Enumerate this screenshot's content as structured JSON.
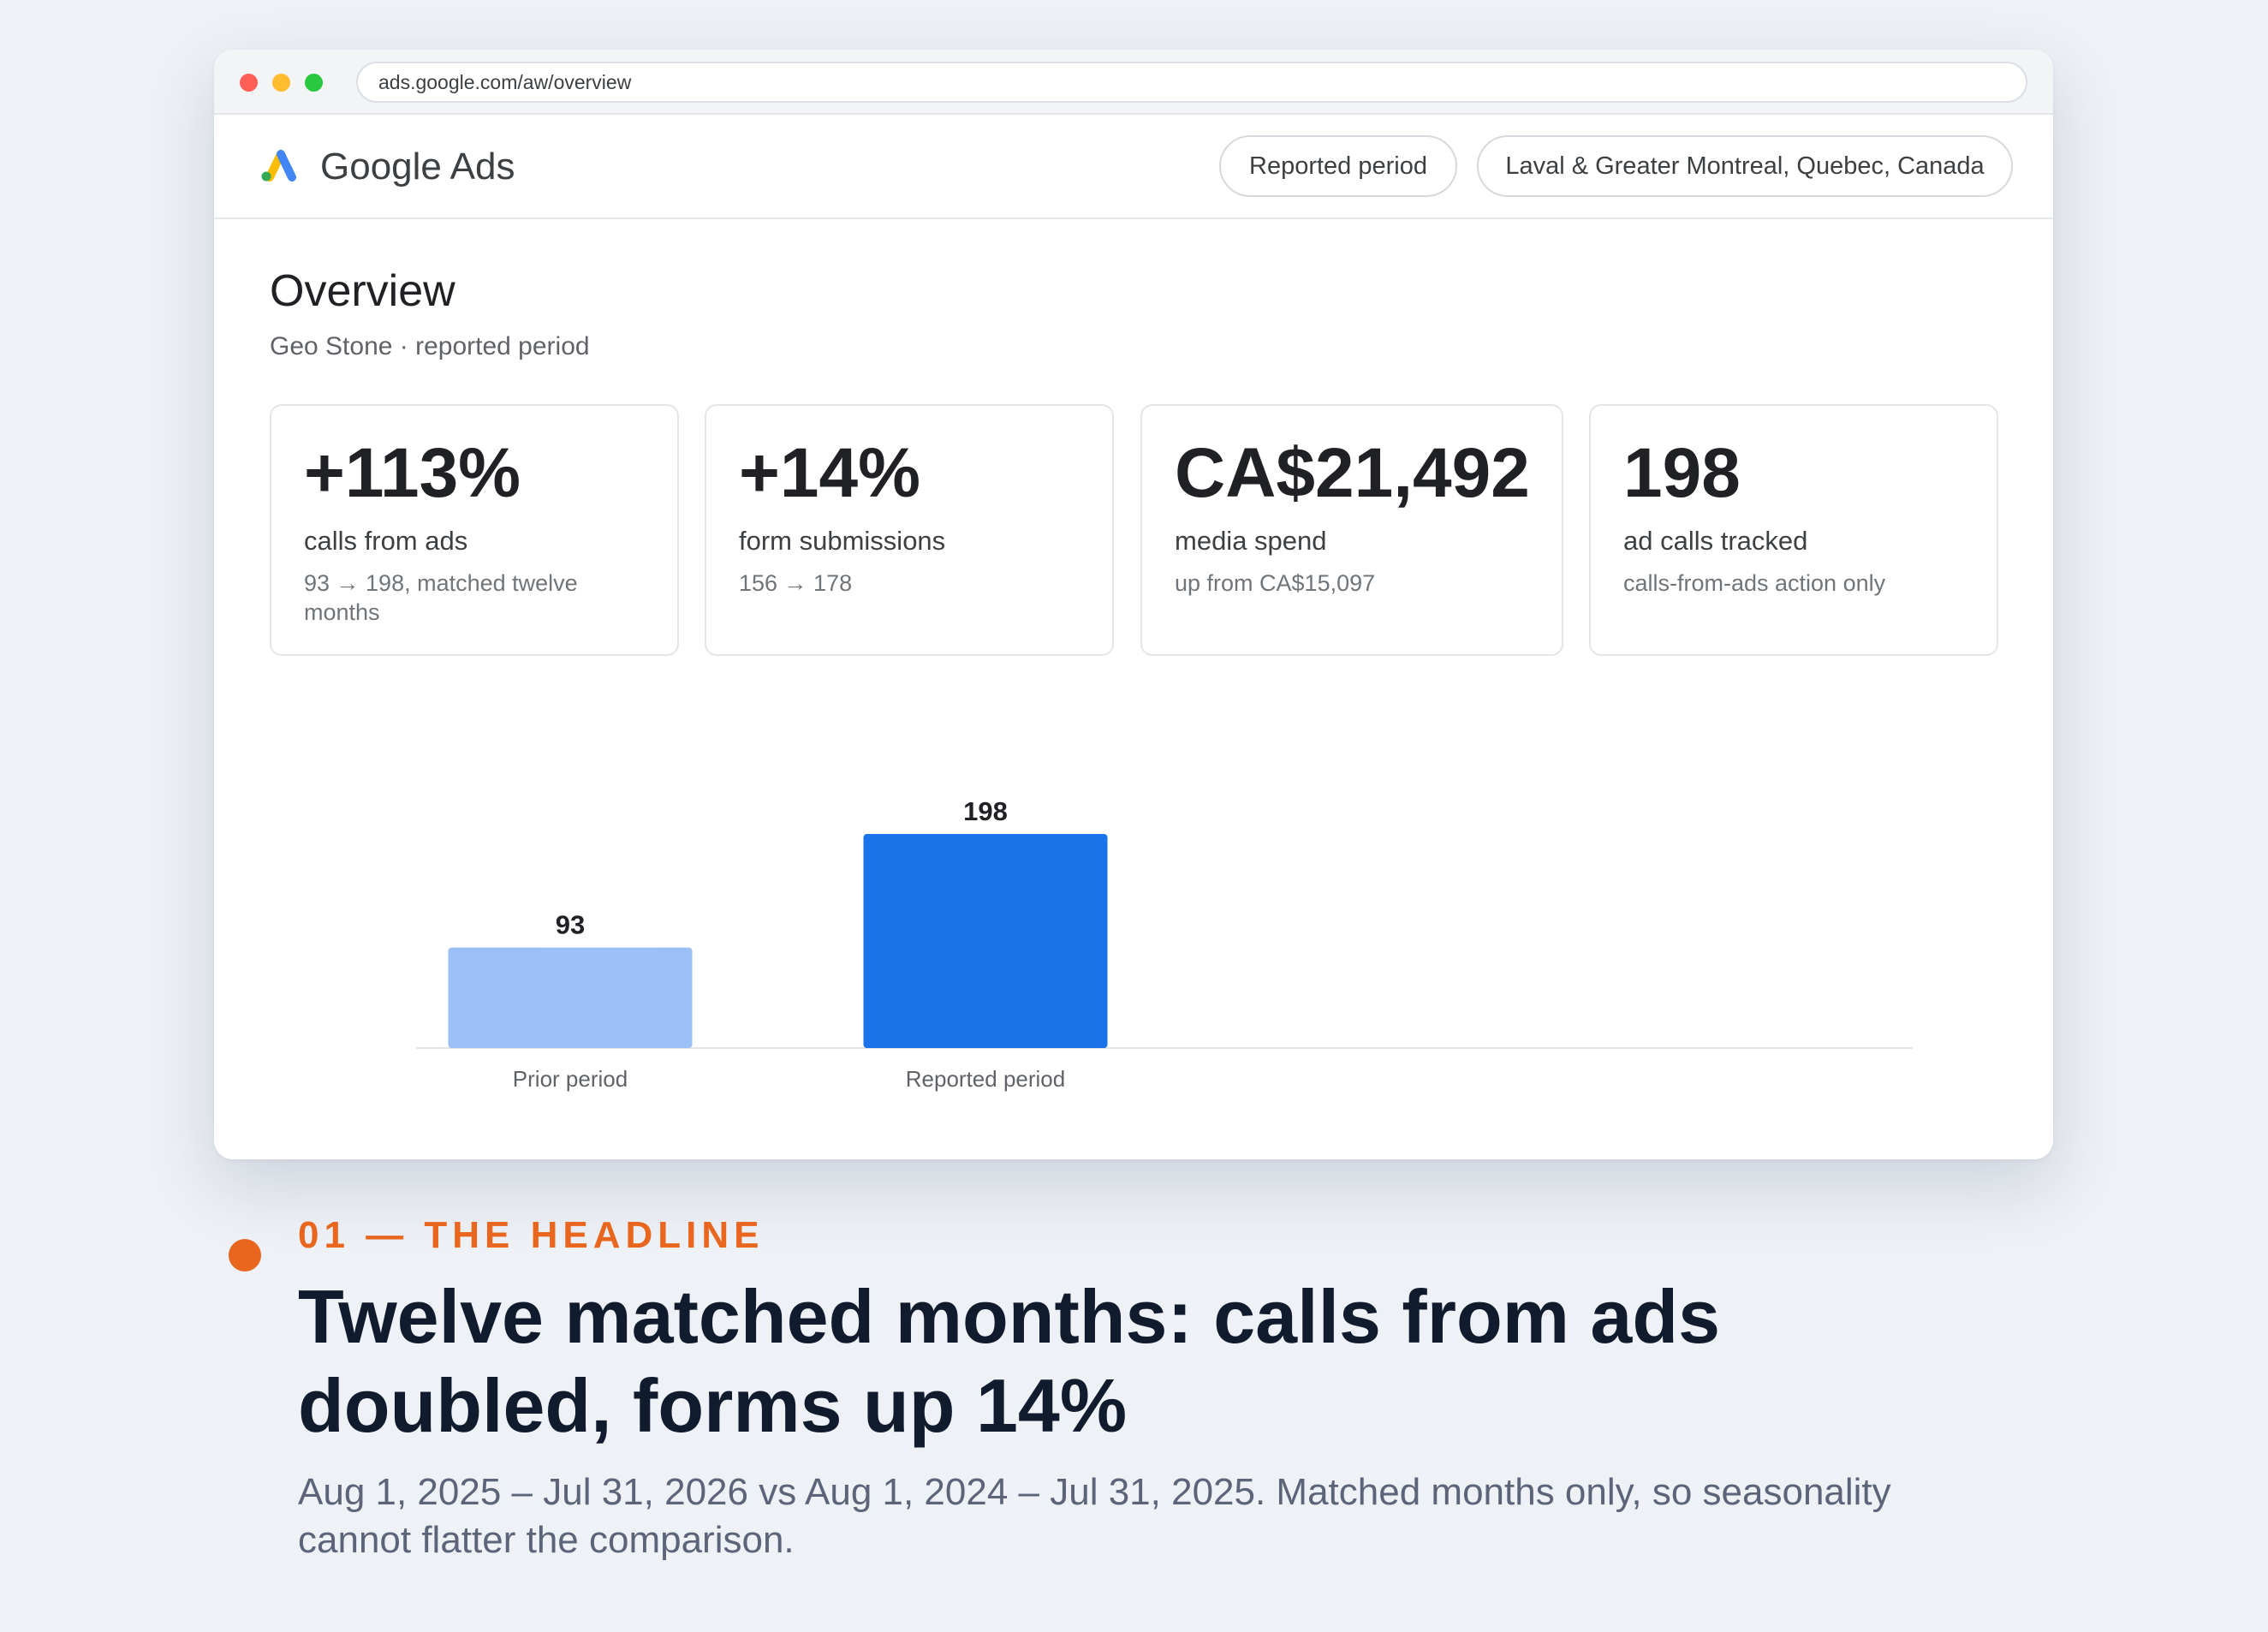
{
  "browser": {
    "url": "ads.google.com/aw/overview"
  },
  "app": {
    "name": "Google Ads",
    "period_chip": "Reported period",
    "location_chip": "Laval & Greater Montreal, Quebec, Canada"
  },
  "overview": {
    "title": "Overview",
    "subtitle": "Geo Stone · reported period"
  },
  "kpis": [
    {
      "value": "+113%",
      "label": "calls from ads",
      "note": "93 → 198, matched twelve months"
    },
    {
      "value": "+14%",
      "label": "form submissions",
      "note": "156 → 178"
    },
    {
      "value": "CA$21,492",
      "label": "media spend",
      "note": "up from CA$15,097"
    },
    {
      "value": "198",
      "label": "ad calls tracked",
      "note": "calls-from-ads action only"
    }
  ],
  "chart_data": {
    "type": "bar",
    "categories": [
      "Prior period",
      "Reported period"
    ],
    "values": [
      93,
      198
    ],
    "data_labels": [
      "93",
      "198"
    ],
    "colors": [
      "#9ac0f5",
      "#1a73e8"
    ],
    "title": "",
    "xlabel": "",
    "ylabel": "",
    "ylim": [
      0,
      198
    ],
    "grid": false
  },
  "caption": {
    "eyebrow": "01 — THE HEADLINE",
    "headline": "Twelve matched months: calls from ads doubled, forms up 14%",
    "subtext": "Aug 1, 2025 – Jul 31, 2026 vs Aug 1, 2024 – Jul 31, 2025. Matched months only, so seasonality cannot flatter the comparison."
  },
  "colors": {
    "accent_orange": "#e8661e",
    "bar_prior": "#9ac0f5",
    "bar_reported": "#1a73e8"
  }
}
